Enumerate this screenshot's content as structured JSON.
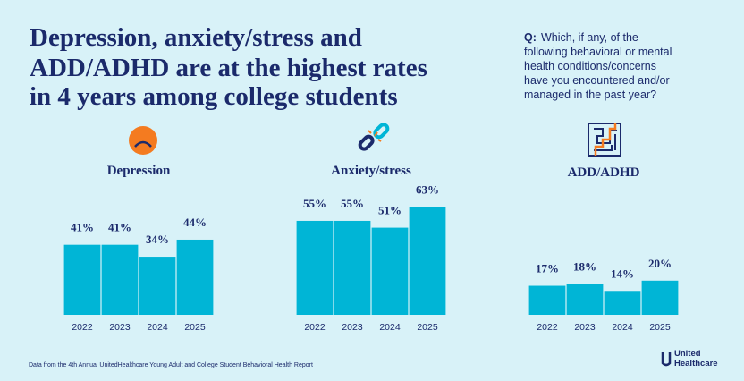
{
  "title_lines": [
    "Depression, anxiety/stress and",
    "ADD/ADHD are at the highest rates",
    "in 4 years among college students"
  ],
  "question_label": "Q:",
  "question_lines": [
    "Which, if any, of the",
    "following behavioral or mental",
    "health conditions/concerns",
    "have you encountered and/or",
    "managed in the past year?"
  ],
  "chart_data": [
    {
      "type": "bar",
      "title": "Depression",
      "categories": [
        "2022",
        "2023",
        "2024",
        "2025"
      ],
      "values": [
        41,
        41,
        34,
        44
      ],
      "value_labels": [
        "41%",
        "41%",
        "34%",
        "44%"
      ],
      "color": "#00b5d6"
    },
    {
      "type": "bar",
      "title": "Anxiety/stress",
      "categories": [
        "2022",
        "2023",
        "2024",
        "2025"
      ],
      "values": [
        55,
        55,
        51,
        63
      ],
      "value_labels": [
        "55%",
        "55%",
        "51%",
        "63%"
      ],
      "color": "#00b5d6"
    },
    {
      "type": "bar",
      "title": "ADD/ADHD",
      "categories": [
        "2022",
        "2023",
        "2024",
        "2025"
      ],
      "values": [
        17,
        18,
        14,
        20
      ],
      "value_labels": [
        "17%",
        "18%",
        "14%",
        "20%"
      ],
      "color": "#00b5d6"
    }
  ],
  "footer": "Data from the 4th Annual UnitedHealthcare Young Adult and College Student Behavioral Health Report",
  "logo_lines": [
    "United",
    "Healthcare"
  ]
}
